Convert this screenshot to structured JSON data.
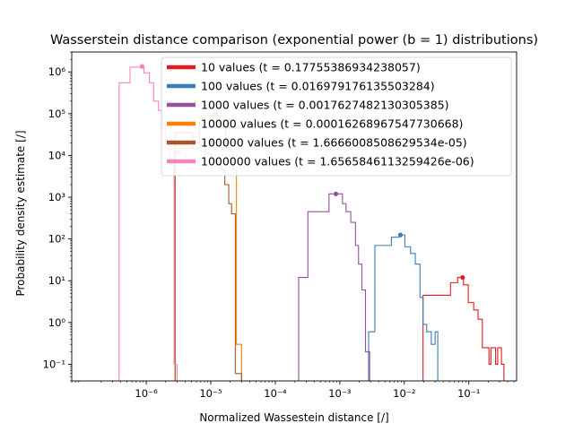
{
  "chart_data": {
    "type": "histogram",
    "title": "Wasserstein distance comparison (exponential power (b = 1) distributions)",
    "xlabel": "Normalized Wassestein distance [/]",
    "ylabel": "Probability density estimate [/]",
    "xscale": "log",
    "yscale": "log",
    "xlim": [
      7e-08,
      0.55
    ],
    "ylim": [
      0.04,
      3000000.0
    ],
    "x_ticks": [
      {
        "value": 1e-06,
        "label": "10⁻⁶"
      },
      {
        "value": 1e-05,
        "label": "10⁻⁵"
      },
      {
        "value": 0.0001,
        "label": "10⁻⁴"
      },
      {
        "value": 0.001,
        "label": "10⁻³"
      },
      {
        "value": 0.01,
        "label": "10⁻²"
      },
      {
        "value": 0.1,
        "label": "10⁻¹"
      }
    ],
    "y_ticks": [
      {
        "value": 0.1,
        "label": "10⁻¹"
      },
      {
        "value": 1,
        "label": "10⁰"
      },
      {
        "value": 10,
        "label": "10¹"
      },
      {
        "value": 100,
        "label": "10²"
      },
      {
        "value": 1000,
        "label": "10³"
      },
      {
        "value": 10000,
        "label": "10⁴"
      },
      {
        "value": 100000,
        "label": "10⁵"
      },
      {
        "value": 1000000,
        "label": "10⁶"
      }
    ],
    "grid": false,
    "legend_position": "upper right",
    "series": [
      {
        "name": "10 values (t = 0.17755386934238057)",
        "color": "#e41a1c",
        "edges": [
          0.0195,
          0.0275,
          0.052,
          0.067,
          0.0825,
          0.098,
          0.119,
          0.139,
          0.162,
          0.178,
          0.205,
          0.22,
          0.26,
          0.28,
          0.32,
          0.35
        ],
        "densities": [
          4.5,
          4.5,
          9,
          12,
          8,
          3,
          2,
          1.2,
          0.25,
          0.25,
          0.1,
          0.25,
          0.1,
          0.25,
          0.1
        ],
        "marker": {
          "x": 0.08,
          "y": 12
        }
      },
      {
        "name": "100 values (t = 0.016979176135503284)",
        "color": "#377eb8",
        "edges": [
          0.0028,
          0.0035,
          0.0063,
          0.0083,
          0.0102,
          0.0125,
          0.0148,
          0.0175,
          0.0195,
          0.0222,
          0.0262,
          0.03,
          0.033
        ],
        "densities": [
          0.6,
          70,
          110,
          125,
          65,
          45,
          25,
          4,
          0.9,
          0.6,
          0.3,
          0.6
        ],
        "marker": {
          "x": 0.0087,
          "y": 125
        }
      },
      {
        "name": "1000 values (t = 0.0017627482130305385)",
        "color": "#984ea3",
        "edges": [
          0.00023,
          0.00032,
          0.00051,
          0.00068,
          0.00085,
          0.0011,
          0.00125,
          0.00148,
          0.00175,
          0.00195,
          0.0022,
          0.0025,
          0.0029
        ],
        "densities": [
          12,
          450,
          450,
          1200,
          1200,
          700,
          450,
          250,
          70,
          25,
          6,
          0.2
        ],
        "marker": {
          "x": 0.00087,
          "y": 1200
        }
      },
      {
        "name": "10000 values (t = 0.00016268967547730668)",
        "color": "#ff7f00",
        "edges": [
          2.8e-06,
          3.3e-06,
          5.2e-06,
          6.7e-06,
          8.5e-06,
          1e-05,
          1.2e-05,
          1.45e-05,
          1.7e-05,
          2e-05,
          2.2e-05,
          2.5e-05,
          3e-05
        ],
        "densities": [
          12000,
          15000,
          20000,
          80000,
          90000,
          85000,
          60000,
          50000,
          15000,
          12000,
          4500,
          0.3
        ],
        "marker": {
          "x": 1.2e-05,
          "y": 95000
        }
      },
      {
        "name": "100000 values (t = 1.6666008508629534e-05)",
        "color": "#a65628",
        "edges": [
          2.8e-06,
          3.2e-06,
          5.2e-06,
          6.6e-06,
          8.2e-06,
          1e-05,
          1.2e-05,
          1.45e-05,
          1.65e-05,
          1.9e-05,
          2.1e-05,
          2.4e-05,
          3e-05
        ],
        "densities": [
          35000,
          35000,
          15000,
          18000,
          11000,
          8000,
          6000,
          4500,
          2000,
          700,
          400,
          0.06
        ],
        "marker": {
          "x": 1e-05,
          "y": 20000
        }
      },
      {
        "name": "1000000 values (t = 1.6565846113259426e-06)",
        "color": "#f781bf",
        "edges": [
          3.8e-07,
          5.6e-07,
          7.3e-07,
          9.2e-07,
          1.12e-06,
          1.3e-06,
          1.55e-06,
          1.78e-06,
          2e-06,
          2.25e-06,
          2.5e-06,
          2.7e-06,
          3e-06
        ],
        "densities": [
          550000,
          1300000,
          1300000,
          950000,
          550000,
          200000,
          120000,
          50000,
          20000,
          8000,
          6000,
          0.1
        ],
        "marker": {
          "x": 8.6e-07,
          "y": 1350000
        }
      }
    ]
  }
}
